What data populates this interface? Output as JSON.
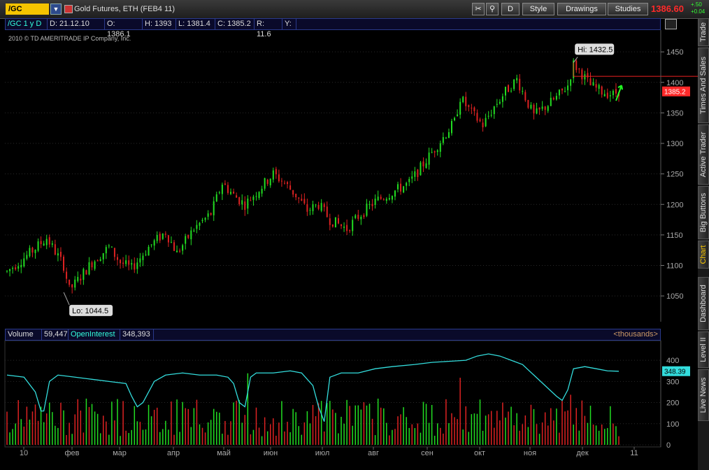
{
  "toolbar": {
    "symbol": "/GC",
    "title": "Gold Futures, ETH (FEB4 11)",
    "period_button": "D",
    "style_label": "Style",
    "drawings_label": "Drawings",
    "studies_label": "Studies",
    "last_price": "1386.60",
    "change_top": "+.50",
    "change_bottom": "+0.04"
  },
  "info": {
    "label": "/GC 1 y D",
    "d": "D: 21.12.10",
    "o": "O: 1386.1",
    "h": "H: 1393",
    "l": "L: 1381.4",
    "c": "C: 1385.2",
    "r": "R: 11.6",
    "y": "Y:"
  },
  "copyright": "2010 © TD AMERITRADE IP Company, Inc.",
  "volume_header": {
    "volume_label": "Volume",
    "volume_value": "59,447",
    "oi_label": "OpenInterest",
    "oi_value": "348,393",
    "units": "<thousands>"
  },
  "sidebar": {
    "tabs": [
      "Trade",
      "Times And Sales",
      "Active Trader",
      "Big Buttons",
      "Chart",
      "Dashboard",
      "Level II",
      "Live News"
    ],
    "active": "Chart"
  },
  "colors": {
    "up": "#22dd22",
    "down": "#dd2222",
    "oi_line": "#33dddd",
    "last_tag": "#ff2a2a",
    "sym_box": "#f5c400"
  },
  "chart_data": {
    "type": "candlestick",
    "x_labels": [
      "10",
      "фев",
      "мар",
      "апр",
      "май",
      "июн",
      "июл",
      "авг",
      "сен",
      "окт",
      "ноя",
      "дек",
      "11"
    ],
    "price_axis": {
      "ticks": [
        1050,
        1100,
        1150,
        1200,
        1250,
        1300,
        1350,
        1400,
        1450
      ],
      "range": [
        1010,
        1480
      ]
    },
    "price_path": [
      [
        0,
        1090
      ],
      [
        8,
        1120
      ],
      [
        14,
        1145
      ],
      [
        20,
        1100
      ],
      [
        22,
        1060
      ],
      [
        24,
        1070
      ],
      [
        30,
        1105
      ],
      [
        36,
        1130
      ],
      [
        40,
        1105
      ],
      [
        44,
        1095
      ],
      [
        50,
        1130
      ],
      [
        56,
        1155
      ],
      [
        60,
        1120
      ],
      [
        66,
        1160
      ],
      [
        72,
        1185
      ],
      [
        76,
        1235
      ],
      [
        80,
        1215
      ],
      [
        84,
        1200
      ],
      [
        90,
        1230
      ],
      [
        94,
        1250
      ],
      [
        98,
        1235
      ],
      [
        102,
        1215
      ],
      [
        106,
        1190
      ],
      [
        110,
        1200
      ],
      [
        114,
        1175
      ],
      [
        118,
        1165
      ],
      [
        120,
        1160
      ],
      [
        124,
        1180
      ],
      [
        130,
        1205
      ],
      [
        136,
        1220
      ],
      [
        142,
        1235
      ],
      [
        146,
        1260
      ],
      [
        150,
        1285
      ],
      [
        154,
        1310
      ],
      [
        158,
        1335
      ],
      [
        160,
        1375
      ],
      [
        164,
        1350
      ],
      [
        168,
        1330
      ],
      [
        172,
        1360
      ],
      [
        176,
        1385
      ],
      [
        180,
        1405
      ],
      [
        182,
        1385
      ],
      [
        186,
        1345
      ],
      [
        190,
        1360
      ],
      [
        194,
        1375
      ],
      [
        198,
        1395
      ],
      [
        200,
        1430
      ],
      [
        202,
        1420
      ],
      [
        206,
        1395
      ],
      [
        210,
        1385
      ],
      [
        214,
        1380
      ],
      [
        216,
        1386
      ]
    ],
    "high": {
      "label": "Hi: 1432.5",
      "value": 1432.5
    },
    "low": {
      "label": "Lo: 1044.5",
      "value": 1044.5
    },
    "last": {
      "label": "1385.2",
      "value": 1385.2
    },
    "resistance_level": 1410,
    "volume_axis": {
      "ticks": [
        0,
        100,
        200,
        300,
        400
      ],
      "range": [
        0,
        450
      ]
    },
    "open_interest_label": "348.39",
    "open_interest_path": [
      [
        0,
        330
      ],
      [
        6,
        320
      ],
      [
        10,
        250
      ],
      [
        12,
        160
      ],
      [
        13,
        160
      ],
      [
        15,
        300
      ],
      [
        18,
        330
      ],
      [
        24,
        320
      ],
      [
        30,
        310
      ],
      [
        36,
        300
      ],
      [
        42,
        290
      ],
      [
        44,
        230
      ],
      [
        46,
        180
      ],
      [
        48,
        200
      ],
      [
        52,
        300
      ],
      [
        56,
        330
      ],
      [
        62,
        340
      ],
      [
        68,
        330
      ],
      [
        74,
        330
      ],
      [
        78,
        320
      ],
      [
        80,
        290
      ],
      [
        82,
        200
      ],
      [
        84,
        180
      ],
      [
        86,
        320
      ],
      [
        88,
        340
      ],
      [
        94,
        340
      ],
      [
        100,
        350
      ],
      [
        104,
        340
      ],
      [
        108,
        280
      ],
      [
        110,
        180
      ],
      [
        112,
        110
      ],
      [
        114,
        320
      ],
      [
        118,
        340
      ],
      [
        124,
        340
      ],
      [
        130,
        360
      ],
      [
        136,
        370
      ],
      [
        144,
        380
      ],
      [
        150,
        390
      ],
      [
        156,
        395
      ],
      [
        162,
        400
      ],
      [
        166,
        420
      ],
      [
        170,
        430
      ],
      [
        174,
        420
      ],
      [
        178,
        400
      ],
      [
        182,
        380
      ],
      [
        186,
        330
      ],
      [
        190,
        280
      ],
      [
        194,
        230
      ],
      [
        196,
        210
      ],
      [
        198,
        260
      ],
      [
        200,
        360
      ],
      [
        204,
        370
      ],
      [
        208,
        360
      ],
      [
        212,
        350
      ],
      [
        216,
        348
      ]
    ],
    "volume_bars_count": 217
  }
}
